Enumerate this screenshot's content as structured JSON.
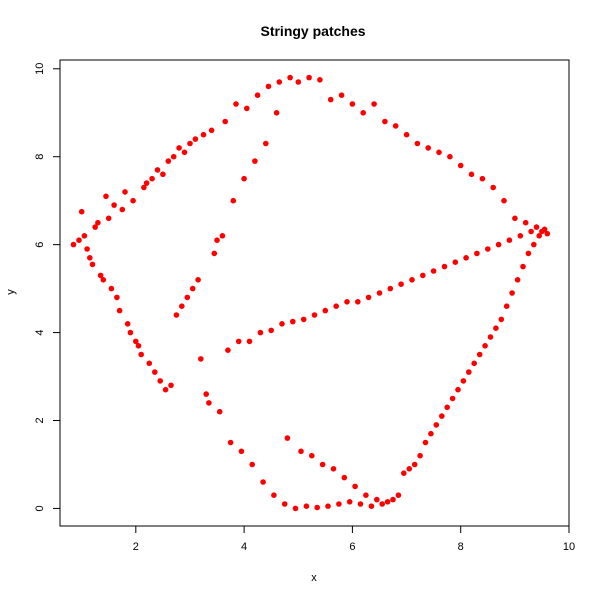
{
  "chart_data": {
    "type": "scatter",
    "title": "Stringy patches",
    "xlabel": "x",
    "ylabel": "y",
    "xlim": [
      0.6,
      10
    ],
    "ylim": [
      -0.4,
      10.2
    ],
    "xticks": [
      2,
      4,
      6,
      8,
      10
    ],
    "yticks": [
      0,
      2,
      4,
      6,
      8,
      10
    ],
    "grid": false,
    "point_color": "#ff0000",
    "series": [
      {
        "points": [
          [
            0.85,
            6.0
          ],
          [
            0.95,
            6.1
          ],
          [
            1.0,
            6.75
          ],
          [
            1.05,
            6.2
          ],
          [
            1.1,
            5.9
          ],
          [
            1.15,
            5.7
          ],
          [
            1.2,
            5.55
          ],
          [
            1.25,
            6.4
          ],
          [
            1.3,
            6.5
          ],
          [
            1.35,
            5.3
          ],
          [
            1.4,
            5.2
          ],
          [
            1.45,
            7.1
          ],
          [
            1.5,
            6.6
          ],
          [
            1.55,
            5.0
          ],
          [
            1.6,
            6.9
          ],
          [
            1.65,
            4.8
          ],
          [
            1.7,
            4.5
          ],
          [
            1.75,
            6.8
          ],
          [
            1.8,
            7.2
          ],
          [
            1.85,
            4.2
          ],
          [
            1.9,
            4.0
          ],
          [
            1.95,
            7.0
          ],
          [
            2.0,
            3.8
          ],
          [
            2.05,
            3.7
          ],
          [
            2.1,
            3.5
          ],
          [
            2.15,
            7.3
          ],
          [
            2.2,
            7.4
          ],
          [
            2.25,
            3.3
          ],
          [
            2.3,
            7.5
          ],
          [
            2.35,
            3.1
          ],
          [
            2.4,
            7.7
          ],
          [
            2.45,
            2.9
          ],
          [
            2.5,
            7.6
          ],
          [
            2.55,
            2.7
          ],
          [
            2.6,
            7.9
          ],
          [
            2.65,
            2.8
          ],
          [
            2.7,
            8.0
          ],
          [
            2.75,
            4.4
          ],
          [
            2.8,
            8.2
          ],
          [
            2.85,
            4.6
          ],
          [
            2.9,
            8.1
          ],
          [
            2.95,
            4.8
          ],
          [
            3.0,
            8.3
          ],
          [
            3.05,
            5.0
          ],
          [
            3.1,
            8.4
          ],
          [
            3.15,
            5.2
          ],
          [
            3.2,
            3.4
          ],
          [
            3.25,
            8.5
          ],
          [
            3.3,
            2.6
          ],
          [
            3.35,
            2.4
          ],
          [
            3.4,
            8.6
          ],
          [
            3.45,
            5.8
          ],
          [
            3.5,
            6.1
          ],
          [
            3.55,
            2.2
          ],
          [
            3.6,
            6.2
          ],
          [
            3.65,
            8.8
          ],
          [
            3.7,
            3.6
          ],
          [
            3.75,
            1.5
          ],
          [
            3.8,
            7.0
          ],
          [
            3.85,
            9.2
          ],
          [
            3.9,
            3.8
          ],
          [
            3.95,
            1.3
          ],
          [
            4.0,
            7.5
          ],
          [
            4.05,
            9.1
          ],
          [
            4.1,
            3.8
          ],
          [
            4.15,
            1.0
          ],
          [
            4.2,
            7.9
          ],
          [
            4.25,
            9.4
          ],
          [
            4.3,
            4.0
          ],
          [
            4.35,
            0.6
          ],
          [
            4.4,
            8.3
          ],
          [
            4.45,
            9.6
          ],
          [
            4.5,
            4.05
          ],
          [
            4.55,
            0.3
          ],
          [
            4.6,
            9.0
          ],
          [
            4.65,
            9.7
          ],
          [
            4.7,
            4.2
          ],
          [
            4.75,
            0.1
          ],
          [
            4.8,
            1.6
          ],
          [
            4.85,
            9.8
          ],
          [
            4.9,
            4.25
          ],
          [
            4.95,
            0.0
          ],
          [
            5.0,
            9.7
          ],
          [
            5.05,
            1.3
          ],
          [
            5.1,
            4.3
          ],
          [
            5.15,
            0.05
          ],
          [
            5.2,
            9.8
          ],
          [
            5.25,
            1.2
          ],
          [
            5.3,
            4.4
          ],
          [
            5.35,
            0.02
          ],
          [
            5.4,
            9.75
          ],
          [
            5.45,
            1.0
          ],
          [
            5.5,
            4.5
          ],
          [
            5.55,
            0.05
          ],
          [
            5.6,
            9.3
          ],
          [
            5.65,
            0.9
          ],
          [
            5.7,
            4.6
          ],
          [
            5.75,
            0.1
          ],
          [
            5.8,
            9.4
          ],
          [
            5.85,
            0.7
          ],
          [
            5.9,
            4.7
          ],
          [
            5.95,
            0.15
          ],
          [
            6.0,
            9.2
          ],
          [
            6.05,
            0.5
          ],
          [
            6.1,
            4.7
          ],
          [
            6.15,
            0.1
          ],
          [
            6.2,
            9.0
          ],
          [
            6.25,
            0.3
          ],
          [
            6.3,
            4.8
          ],
          [
            6.35,
            0.05
          ],
          [
            6.4,
            9.2
          ],
          [
            6.45,
            0.2
          ],
          [
            6.5,
            4.9
          ],
          [
            6.55,
            0.1
          ],
          [
            6.6,
            8.8
          ],
          [
            6.65,
            0.15
          ],
          [
            6.7,
            5.0
          ],
          [
            6.75,
            0.2
          ],
          [
            6.8,
            8.7
          ],
          [
            6.85,
            0.3
          ],
          [
            6.9,
            5.1
          ],
          [
            6.95,
            0.8
          ],
          [
            7.0,
            8.5
          ],
          [
            7.05,
            0.9
          ],
          [
            7.1,
            5.2
          ],
          [
            7.15,
            1.0
          ],
          [
            7.2,
            8.3
          ],
          [
            7.25,
            1.2
          ],
          [
            7.3,
            5.3
          ],
          [
            7.35,
            1.5
          ],
          [
            7.4,
            8.2
          ],
          [
            7.45,
            1.7
          ],
          [
            7.5,
            5.4
          ],
          [
            7.55,
            1.9
          ],
          [
            7.6,
            8.1
          ],
          [
            7.65,
            2.1
          ],
          [
            7.7,
            5.5
          ],
          [
            7.75,
            2.3
          ],
          [
            7.8,
            8.0
          ],
          [
            7.85,
            2.5
          ],
          [
            7.9,
            5.6
          ],
          [
            7.95,
            2.7
          ],
          [
            8.0,
            7.8
          ],
          [
            8.05,
            2.9
          ],
          [
            8.1,
            5.7
          ],
          [
            8.15,
            3.1
          ],
          [
            8.2,
            7.6
          ],
          [
            8.25,
            3.3
          ],
          [
            8.3,
            5.8
          ],
          [
            8.35,
            3.5
          ],
          [
            8.4,
            7.5
          ],
          [
            8.45,
            3.7
          ],
          [
            8.5,
            5.9
          ],
          [
            8.55,
            3.9
          ],
          [
            8.6,
            7.3
          ],
          [
            8.65,
            4.1
          ],
          [
            8.7,
            6.0
          ],
          [
            8.75,
            4.3
          ],
          [
            8.8,
            7.0
          ],
          [
            8.85,
            4.6
          ],
          [
            8.9,
            6.1
          ],
          [
            8.95,
            4.9
          ],
          [
            9.0,
            6.6
          ],
          [
            9.05,
            5.2
          ],
          [
            9.1,
            6.2
          ],
          [
            9.15,
            5.5
          ],
          [
            9.2,
            6.5
          ],
          [
            9.25,
            5.8
          ],
          [
            9.3,
            6.3
          ],
          [
            9.35,
            6.0
          ],
          [
            9.4,
            6.4
          ],
          [
            9.45,
            6.2
          ],
          [
            9.5,
            6.3
          ],
          [
            9.55,
            6.35
          ],
          [
            9.6,
            6.25
          ]
        ]
      }
    ]
  }
}
